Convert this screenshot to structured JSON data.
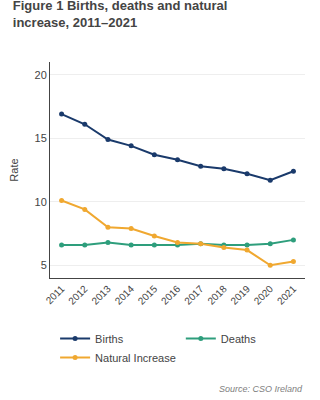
{
  "chart_data": {
    "type": "line",
    "title": "Figure 1 Births, deaths and natural increase, 2011–2021",
    "y_label": "Rate",
    "x": [
      2011,
      2012,
      2013,
      2014,
      2015,
      2016,
      2017,
      2018,
      2019,
      2020,
      2021
    ],
    "series": [
      {
        "name": "Births",
        "color": "#1a3a6b",
        "values": [
          16.9,
          16.1,
          14.9,
          14.4,
          13.7,
          13.3,
          12.8,
          12.6,
          12.2,
          11.7,
          12.4
        ]
      },
      {
        "name": "Deaths",
        "color": "#2e9e7c",
        "values": [
          6.6,
          6.6,
          6.8,
          6.6,
          6.6,
          6.6,
          6.7,
          6.6,
          6.6,
          6.7,
          7.0
        ]
      },
      {
        "name": "Natural Increase",
        "color": "#f0a830",
        "values": [
          10.1,
          9.4,
          8.0,
          7.9,
          7.3,
          6.8,
          6.7,
          6.4,
          6.2,
          5.0,
          5.3
        ]
      }
    ],
    "xlim": [
      2010.5,
      2021.5
    ],
    "xticks": [
      2011,
      2012,
      2013,
      2014,
      2015,
      2016,
      2017,
      2018,
      2019,
      2020,
      2021
    ],
    "ylim": [
      4,
      21
    ],
    "yticks": [
      5,
      10,
      15,
      20
    ],
    "grid": true,
    "legend": "bottom",
    "marker": "circle",
    "annotations": [
      "Source: CSO Ireland"
    ]
  }
}
